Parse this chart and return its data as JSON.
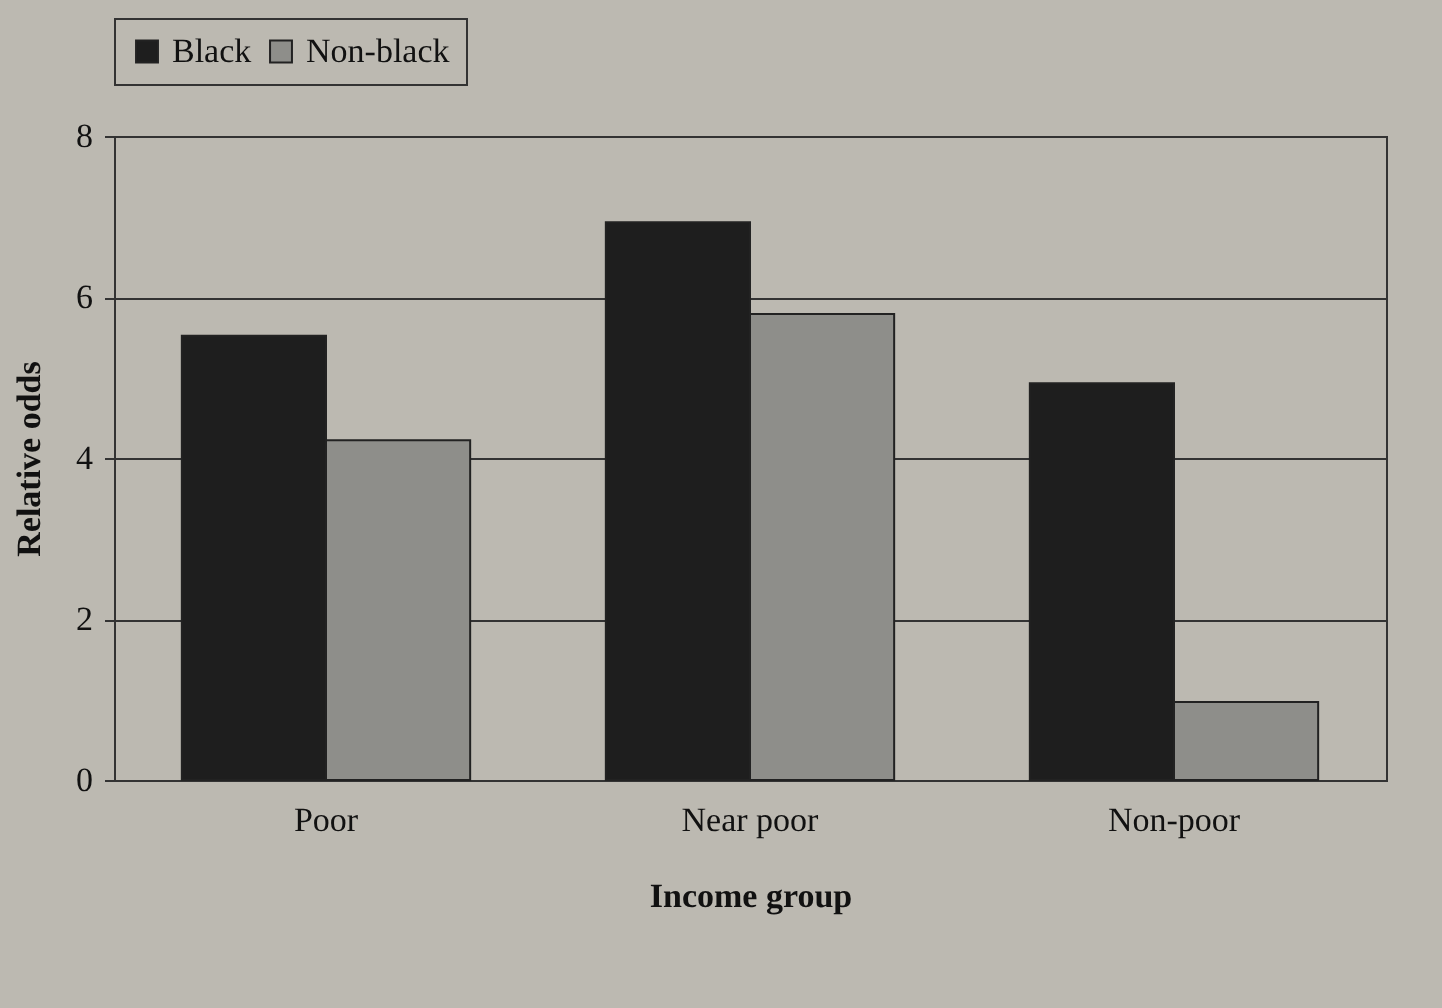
{
  "chart_data": {
    "type": "bar",
    "xlabel": "Income group",
    "ylabel": "Relative odds",
    "categories": [
      "Poor",
      "Near poor",
      "Non-poor"
    ],
    "series": [
      {
        "name": "Black",
        "color": "#1e1e1e",
        "values": [
          5.52,
          6.93,
          4.93
        ]
      },
      {
        "name": "Non-black",
        "color": "#8e8e8a",
        "values": [
          4.22,
          5.79,
          0.97
        ]
      }
    ],
    "ylim": [
      0,
      8
    ],
    "yticks": [
      0,
      2,
      4,
      6,
      8
    ],
    "grid": "y",
    "legend": "top"
  }
}
